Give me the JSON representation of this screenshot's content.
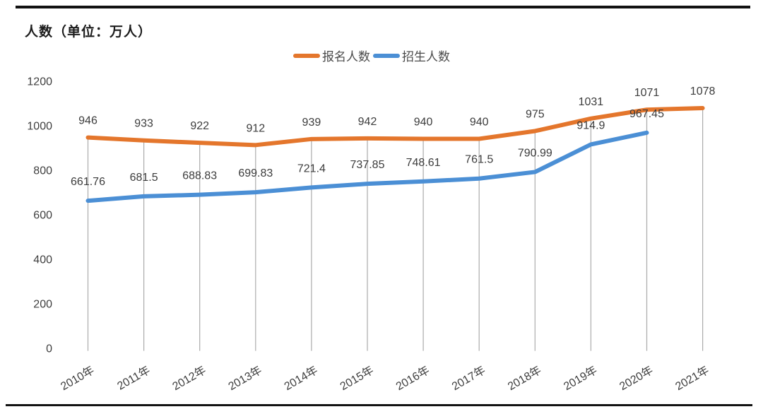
{
  "page": {
    "title": "人数（单位：万人）"
  },
  "legend": {
    "items": [
      "报名人数",
      "招生人数"
    ]
  },
  "chart_data": {
    "type": "line",
    "title": "人数（单位：万人）",
    "categories": [
      "2010年",
      "2011年",
      "2012年",
      "2013年",
      "2014年",
      "2015年",
      "2016年",
      "2017年",
      "2018年",
      "2019年",
      "2020年",
      "2021年"
    ],
    "series": [
      {
        "name": "报名人数",
        "color": "#E4762C",
        "values": [
          946,
          933,
          922,
          912,
          939,
          942,
          940,
          940,
          975,
          1031,
          1071,
          1078
        ]
      },
      {
        "name": "招生人数",
        "color": "#4B8FD5",
        "values": [
          661.76,
          681.5,
          688.83,
          699.83,
          721.4,
          737.85,
          748.61,
          761.5,
          790.99,
          914.9,
          967.45
        ]
      }
    ],
    "xlabel": "",
    "ylabel": "人数（单位：万人）",
    "ylim": [
      0,
      1200
    ],
    "yticks": [
      0,
      200,
      400,
      600,
      800,
      1000,
      1200
    ],
    "legend_position": "top-center",
    "grid": "vertical drop lines from top series to x-axis",
    "gridline_color": "#ABABAB",
    "label_color": "#3c3c3c"
  }
}
